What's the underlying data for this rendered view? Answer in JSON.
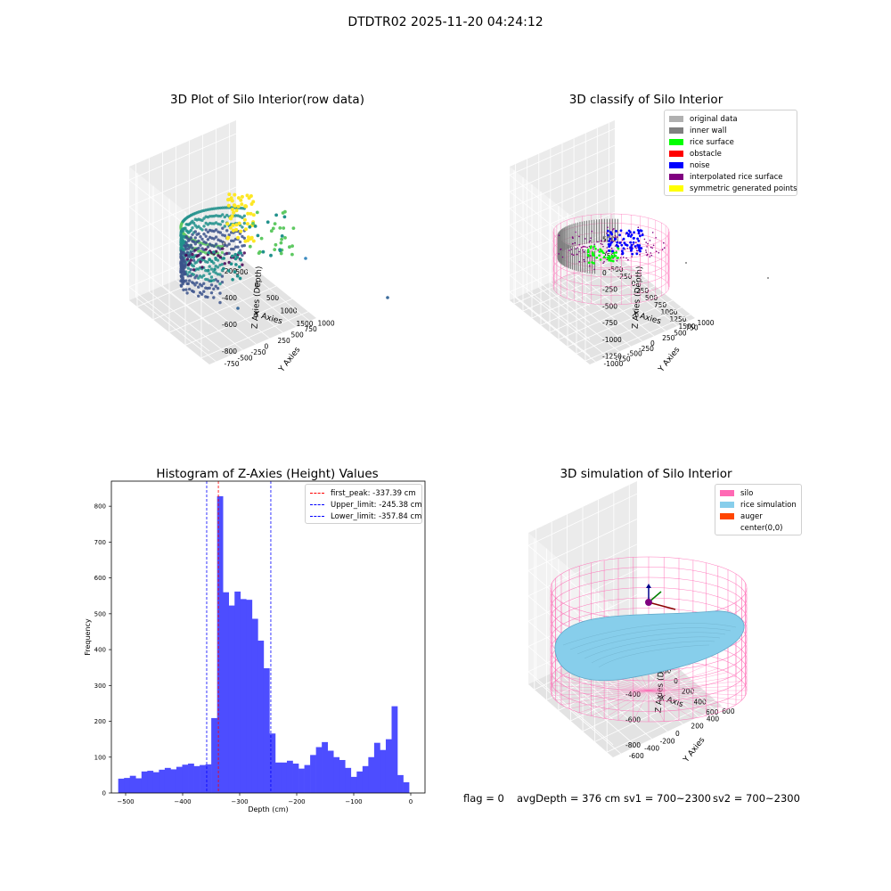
{
  "suptitle": "DTDTR02 2025-11-20 04:24:12",
  "footer": {
    "flag": "flag = 0",
    "avg_depth": "avgDepth = 376 cm",
    "sv1": "sv1 = 700~2300",
    "sv2": "sv2 = 700~2300"
  },
  "colors": {
    "original_data": "#b0b0b0",
    "inner_wall": "#808080",
    "rice_surface": "#00ff00",
    "obstacle": "#ff0000",
    "noise": "#0000ff",
    "interpolated_rice_surface": "#800080",
    "symmetric_generated_points": "#ffff00",
    "silo": "#ff69b4",
    "rice_simulation": "#87ceeb",
    "auger": "#ff4500",
    "histogram_bars": "#4d4dff"
  },
  "chart_data": [
    {
      "type": "scatter",
      "projection": "3d",
      "title": "3D Plot of Silo Interior(row data)",
      "xlabel": "X Axies",
      "ylabel": "Y Axies",
      "zlabel": "Z Axies (Depth)",
      "x_ticks": [
        "-500",
        "0",
        "500",
        "1000",
        "1500"
      ],
      "y_ticks": [
        "-750",
        "-500",
        "-250",
        "0",
        "250",
        "500",
        "750",
        "1000"
      ],
      "z_ticks": [
        "-800",
        "-600",
        "-400",
        "-200",
        "0"
      ],
      "colormap": "viridis",
      "legend": []
    },
    {
      "type": "scatter",
      "projection": "3d",
      "title": "3D classify of Silo Interior",
      "xlabel": "X Axies",
      "ylabel": "Y Axies",
      "zlabel": "Z Axies (Depth)",
      "x_ticks": [
        "-500",
        "-250",
        "0",
        "250",
        "500",
        "750",
        "1000",
        "1250",
        "1500"
      ],
      "y_ticks": [
        "-1000",
        "-750",
        "-500",
        "-250",
        "0",
        "250",
        "500",
        "750",
        "1000"
      ],
      "z_ticks": [
        "-1250",
        "-1000",
        "-750",
        "-500",
        "-250",
        "0",
        "250",
        "500",
        "750"
      ],
      "z_ticks_visible": [
        "-1250",
        "-1000",
        "-750",
        "-500",
        "-250",
        "0",
        "250",
        "500"
      ],
      "legend_position": "top-right",
      "legend": [
        "original data",
        "inner wall",
        "rice surface",
        "obstacle",
        "noise",
        "interpolated rice surface",
        "symmetric generated points"
      ]
    },
    {
      "type": "bar",
      "title": "Histogram of Z-Axies (Height) Values",
      "xlabel": "Depth (cm)",
      "ylabel": "Frequency",
      "xlim": [
        -525,
        25
      ],
      "ylim": [
        0,
        870
      ],
      "x_ticks": [
        -500,
        -400,
        -300,
        -200,
        -100,
        0
      ],
      "y_ticks": [
        0,
        100,
        200,
        300,
        400,
        500,
        600,
        700,
        800
      ],
      "bin_start": -513,
      "bin_width": 10.2,
      "values": [
        40,
        42,
        48,
        41,
        60,
        62,
        58,
        65,
        70,
        66,
        73,
        79,
        82,
        75,
        78,
        80,
        209,
        828,
        560,
        523,
        562,
        541,
        539,
        486,
        425,
        348,
        166,
        85,
        85,
        90,
        82,
        68,
        78,
        106,
        128,
        142,
        118,
        100,
        92,
        70,
        45,
        60,
        75,
        100,
        140,
        120,
        150,
        242,
        50,
        30
      ],
      "vlines": [
        {
          "label": "first_peak: -337.39 cm",
          "x": -337.39,
          "color": "#ff0000"
        },
        {
          "label": "Upper_limit: -245.38 cm",
          "x": -245.38,
          "color": "#0000ff"
        },
        {
          "label": "Lower_limit: -357.84 cm",
          "x": -357.84,
          "color": "#0000ff"
        }
      ],
      "legend_position": "top-right"
    },
    {
      "type": "surface",
      "projection": "3d",
      "title": "3D simulation of Silo Interior",
      "xlabel": "X Axis",
      "ylabel": "Y Axies",
      "zlabel": "Z Axies (Depth)",
      "x_ticks": [
        "-600",
        "-400",
        "-200",
        "0",
        "200",
        "400",
        "600"
      ],
      "y_ticks": [
        "-600",
        "-400",
        "-200",
        "0",
        "200",
        "400",
        "600"
      ],
      "z_ticks": [
        "-800",
        "-600",
        "-400",
        "-200",
        "0",
        "200"
      ],
      "legend_position": "top-right",
      "legend": [
        "silo",
        "rice simulation",
        "auger",
        "center(0,0)"
      ]
    }
  ]
}
